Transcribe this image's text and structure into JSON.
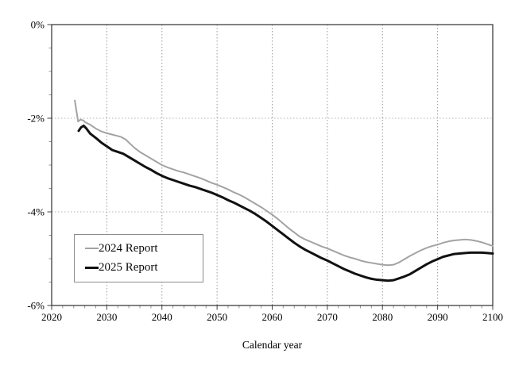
{
  "chart_data": {
    "type": "line",
    "title": "",
    "xlabel": "Calendar year",
    "ylabel": "",
    "xlim": [
      2020,
      2100
    ],
    "ylim": [
      -6,
      0
    ],
    "x_ticks_major": [
      2020,
      2030,
      2040,
      2050,
      2060,
      2070,
      2080,
      2090,
      2100
    ],
    "x_tick_labels": [
      "2020",
      "2030",
      "2040",
      "2050",
      "2060",
      "2070",
      "2080",
      "2090",
      "2100"
    ],
    "x_minor_step": 2,
    "y_ticks_major": [
      0,
      -2,
      -4,
      -6
    ],
    "y_tick_labels": [
      "0%",
      "-2%",
      "-4%",
      "-6%"
    ],
    "y_minor_step": 0.5,
    "grid_x": [
      2030,
      2040,
      2050,
      2060,
      2070,
      2080,
      2090
    ],
    "grid_y": [
      -2,
      -4
    ],
    "grid_on": true,
    "legend_position": "lower-left",
    "series": [
      {
        "name": "2024 Report",
        "color": "#a3a3a3",
        "width": 2,
        "points": [
          [
            2024.2,
            -1.62
          ],
          [
            2024.5,
            -1.85
          ],
          [
            2024.8,
            -2.07
          ],
          [
            2025.2,
            -2.03
          ],
          [
            2025.8,
            -2.05
          ],
          [
            2026,
            -2.08
          ],
          [
            2027,
            -2.14
          ],
          [
            2028,
            -2.22
          ],
          [
            2029,
            -2.28
          ],
          [
            2030,
            -2.32
          ],
          [
            2031,
            -2.35
          ],
          [
            2032,
            -2.38
          ],
          [
            2032.6,
            -2.4
          ],
          [
            2033.5,
            -2.46
          ],
          [
            2034,
            -2.52
          ],
          [
            2035,
            -2.63
          ],
          [
            2036,
            -2.72
          ],
          [
            2037,
            -2.79
          ],
          [
            2038,
            -2.86
          ],
          [
            2039,
            -2.93
          ],
          [
            2040,
            -3.0
          ],
          [
            2041,
            -3.05
          ],
          [
            2042,
            -3.09
          ],
          [
            2043,
            -3.13
          ],
          [
            2044,
            -3.16
          ],
          [
            2045,
            -3.2
          ],
          [
            2046,
            -3.24
          ],
          [
            2047,
            -3.28
          ],
          [
            2048,
            -3.33
          ],
          [
            2049,
            -3.38
          ],
          [
            2050,
            -3.42
          ],
          [
            2051,
            -3.47
          ],
          [
            2052,
            -3.52
          ],
          [
            2053,
            -3.58
          ],
          [
            2054,
            -3.63
          ],
          [
            2055,
            -3.69
          ],
          [
            2056,
            -3.76
          ],
          [
            2057,
            -3.83
          ],
          [
            2058,
            -3.9
          ],
          [
            2059,
            -3.98
          ],
          [
            2060,
            -4.06
          ],
          [
            2061,
            -4.15
          ],
          [
            2062,
            -4.25
          ],
          [
            2063,
            -4.35
          ],
          [
            2064,
            -4.44
          ],
          [
            2065,
            -4.53
          ],
          [
            2066,
            -4.59
          ],
          [
            2067,
            -4.64
          ],
          [
            2068,
            -4.69
          ],
          [
            2069,
            -4.74
          ],
          [
            2070,
            -4.78
          ],
          [
            2071,
            -4.83
          ],
          [
            2072,
            -4.88
          ],
          [
            2073,
            -4.93
          ],
          [
            2074,
            -4.97
          ],
          [
            2075,
            -5.0
          ],
          [
            2076,
            -5.04
          ],
          [
            2077,
            -5.07
          ],
          [
            2078,
            -5.09
          ],
          [
            2079,
            -5.11
          ],
          [
            2080,
            -5.13
          ],
          [
            2081,
            -5.14
          ],
          [
            2082,
            -5.13
          ],
          [
            2083,
            -5.08
          ],
          [
            2084,
            -5.01
          ],
          [
            2085,
            -4.94
          ],
          [
            2086,
            -4.88
          ],
          [
            2087,
            -4.82
          ],
          [
            2088,
            -4.77
          ],
          [
            2089,
            -4.73
          ],
          [
            2090,
            -4.7
          ],
          [
            2091,
            -4.66
          ],
          [
            2092,
            -4.63
          ],
          [
            2093,
            -4.61
          ],
          [
            2094,
            -4.6
          ],
          [
            2095,
            -4.59
          ],
          [
            2096,
            -4.6
          ],
          [
            2097,
            -4.62
          ],
          [
            2098,
            -4.65
          ],
          [
            2099,
            -4.69
          ],
          [
            2100,
            -4.73
          ]
        ]
      },
      {
        "name": "2025 Report",
        "color": "#111111",
        "width": 3,
        "points": [
          [
            2024.9,
            -2.27
          ],
          [
            2025.3,
            -2.2
          ],
          [
            2025.8,
            -2.16
          ],
          [
            2026.3,
            -2.22
          ],
          [
            2027,
            -2.33
          ],
          [
            2028,
            -2.42
          ],
          [
            2029,
            -2.52
          ],
          [
            2030,
            -2.6
          ],
          [
            2031,
            -2.68
          ],
          [
            2032,
            -2.72
          ],
          [
            2033,
            -2.76
          ],
          [
            2034,
            -2.83
          ],
          [
            2035,
            -2.9
          ],
          [
            2036,
            -2.97
          ],
          [
            2037,
            -3.04
          ],
          [
            2038,
            -3.1
          ],
          [
            2039,
            -3.17
          ],
          [
            2040,
            -3.23
          ],
          [
            2041,
            -3.28
          ],
          [
            2042,
            -3.32
          ],
          [
            2043,
            -3.36
          ],
          [
            2044,
            -3.4
          ],
          [
            2045,
            -3.44
          ],
          [
            2046,
            -3.47
          ],
          [
            2047,
            -3.51
          ],
          [
            2048,
            -3.55
          ],
          [
            2049,
            -3.59
          ],
          [
            2050,
            -3.64
          ],
          [
            2051,
            -3.69
          ],
          [
            2052,
            -3.75
          ],
          [
            2053,
            -3.8
          ],
          [
            2054,
            -3.86
          ],
          [
            2055,
            -3.92
          ],
          [
            2056,
            -3.98
          ],
          [
            2057,
            -4.05
          ],
          [
            2058,
            -4.13
          ],
          [
            2059,
            -4.21
          ],
          [
            2060,
            -4.3
          ],
          [
            2061,
            -4.39
          ],
          [
            2062,
            -4.48
          ],
          [
            2063,
            -4.57
          ],
          [
            2064,
            -4.66
          ],
          [
            2065,
            -4.74
          ],
          [
            2066,
            -4.81
          ],
          [
            2067,
            -4.87
          ],
          [
            2068,
            -4.93
          ],
          [
            2069,
            -4.99
          ],
          [
            2070,
            -5.04
          ],
          [
            2071,
            -5.1
          ],
          [
            2072,
            -5.16
          ],
          [
            2073,
            -5.22
          ],
          [
            2074,
            -5.27
          ],
          [
            2075,
            -5.32
          ],
          [
            2076,
            -5.36
          ],
          [
            2077,
            -5.4
          ],
          [
            2078,
            -5.43
          ],
          [
            2079,
            -5.45
          ],
          [
            2080,
            -5.46
          ],
          [
            2081,
            -5.47
          ],
          [
            2082,
            -5.46
          ],
          [
            2083,
            -5.42
          ],
          [
            2084,
            -5.38
          ],
          [
            2085,
            -5.33
          ],
          [
            2086,
            -5.26
          ],
          [
            2087,
            -5.19
          ],
          [
            2088,
            -5.12
          ],
          [
            2089,
            -5.06
          ],
          [
            2090,
            -5.01
          ],
          [
            2091,
            -4.96
          ],
          [
            2092,
            -4.93
          ],
          [
            2093,
            -4.9
          ],
          [
            2094,
            -4.89
          ],
          [
            2095,
            -4.88
          ],
          [
            2096,
            -4.87
          ],
          [
            2097,
            -4.87
          ],
          [
            2098,
            -4.87
          ],
          [
            2099,
            -4.88
          ],
          [
            2100,
            -4.89
          ]
        ]
      }
    ]
  },
  "colors": {
    "frame": "#2e2e2e",
    "grid_vertical": "#9a9a9a",
    "grid_horizontal": "#b5b5b5",
    "tick_major": "#444444",
    "tick_minor": "#999999",
    "text": "#000000",
    "legend_border": "#8c8c8c"
  }
}
